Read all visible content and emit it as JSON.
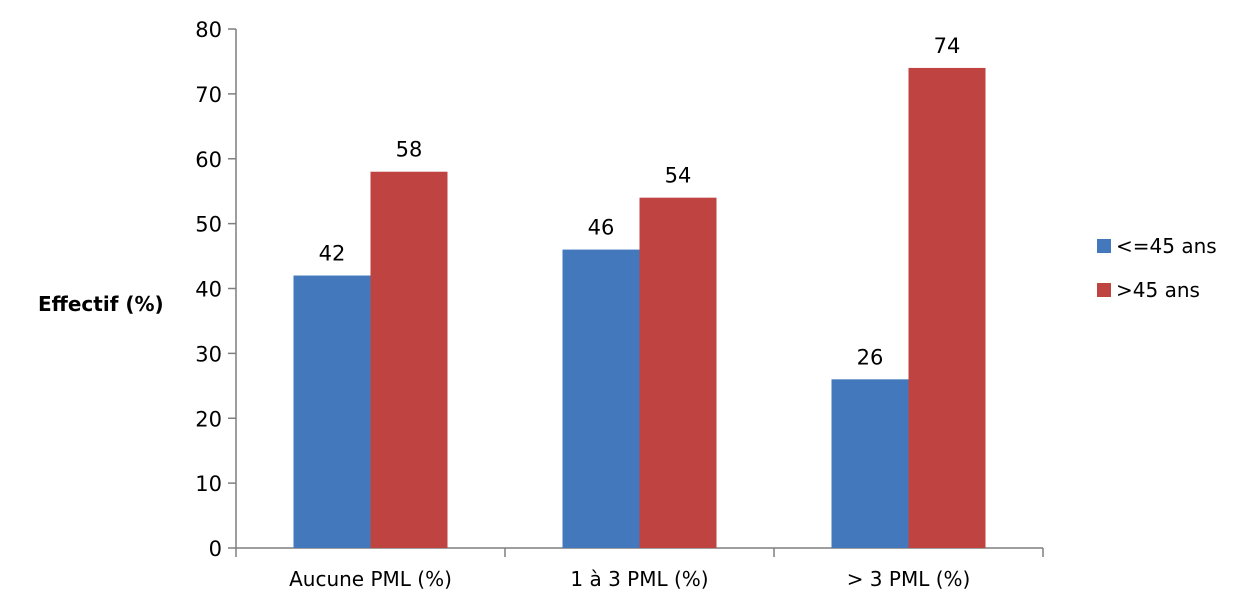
{
  "chart_data": {
    "type": "bar",
    "title": "",
    "xlabel": "",
    "ylabel": "Effectif (%)",
    "ylim": [
      0,
      80
    ],
    "yticks": [
      0,
      10,
      20,
      30,
      40,
      50,
      60,
      70,
      80
    ],
    "categories": [
      "Aucune PML (%)",
      "1 à 3 PML (%)",
      "> 3 PML (%)"
    ],
    "series": [
      {
        "name": "<=45 ans",
        "color": "#4379BC",
        "values": [
          42,
          46,
          26
        ]
      },
      {
        "name": ">45 ans",
        "color": "#BF4341",
        "values": [
          58,
          54,
          74
        ]
      }
    ],
    "legend_position": "right",
    "grid": false
  }
}
